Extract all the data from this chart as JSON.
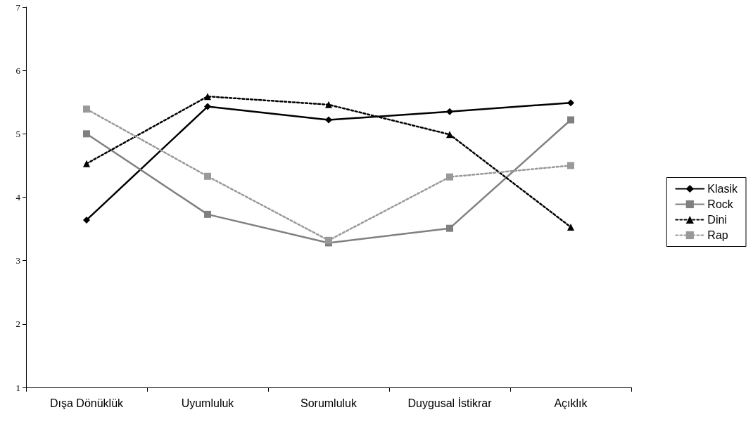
{
  "chart_data": {
    "type": "line",
    "categories": [
      "Dışa Dönüklük",
      "Uyumluluk",
      "Sorumluluk",
      "Duygusal İstikrar",
      "Açıklık"
    ],
    "ylim": [
      1,
      7
    ],
    "yticks": [
      1,
      2,
      3,
      4,
      5,
      6,
      7
    ],
    "grid": false,
    "legend": "right",
    "series": [
      {
        "name": "Klasik",
        "color": "#000000",
        "marker": "diamond",
        "line_style": "solid",
        "values": [
          3.64,
          5.43,
          5.22,
          5.35,
          5.49
        ]
      },
      {
        "name": "Rock",
        "color": "#808080",
        "marker": "square",
        "line_style": "solid",
        "values": [
          5.0,
          3.73,
          3.28,
          3.51,
          5.22
        ]
      },
      {
        "name": "Dini",
        "color": "#000000",
        "marker": "triangle",
        "line_style": "dotted",
        "values": [
          4.53,
          5.59,
          5.46,
          4.99,
          3.53
        ]
      },
      {
        "name": "Rap",
        "color": "#999999",
        "marker": "square",
        "line_style": "dotted",
        "values": [
          5.39,
          4.33,
          3.32,
          4.32,
          4.5
        ]
      }
    ]
  }
}
